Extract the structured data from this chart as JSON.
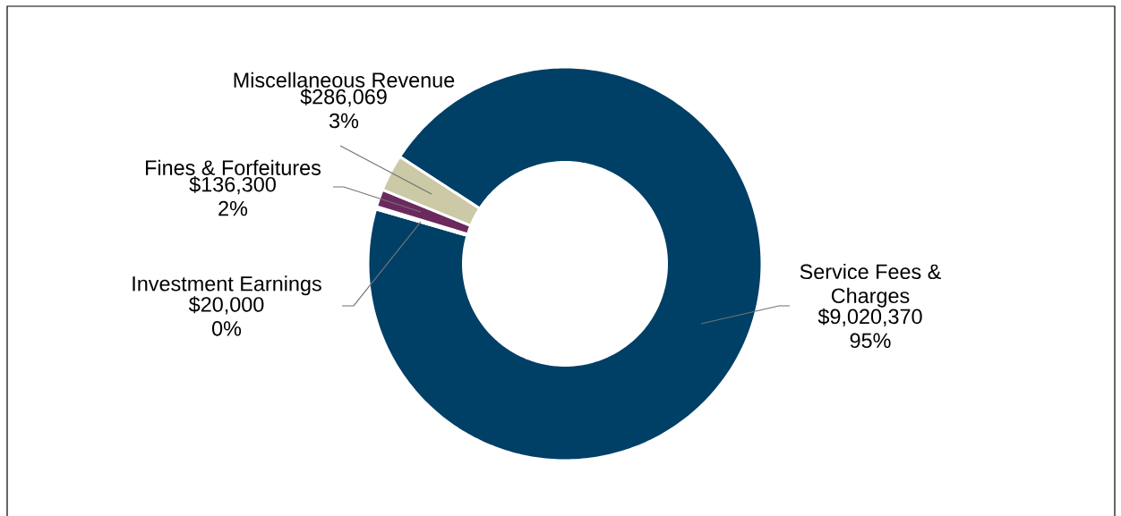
{
  "chart_data": {
    "type": "donut",
    "categories": [
      "Service Fees & Charges",
      "Investment Earnings",
      "Fines & Forfeitures",
      "Miscellaneous Revenue"
    ],
    "values": [
      9020370,
      20000,
      136300,
      286069
    ],
    "colors": [
      "#003f66",
      "#7f7f7f",
      "#6b2a5e",
      "#cbc9a6"
    ],
    "value_labels": [
      "$9,020,370 95%",
      "$20,000 0%",
      "$136,300 2%",
      "$286,069 3%"
    ]
  }
}
